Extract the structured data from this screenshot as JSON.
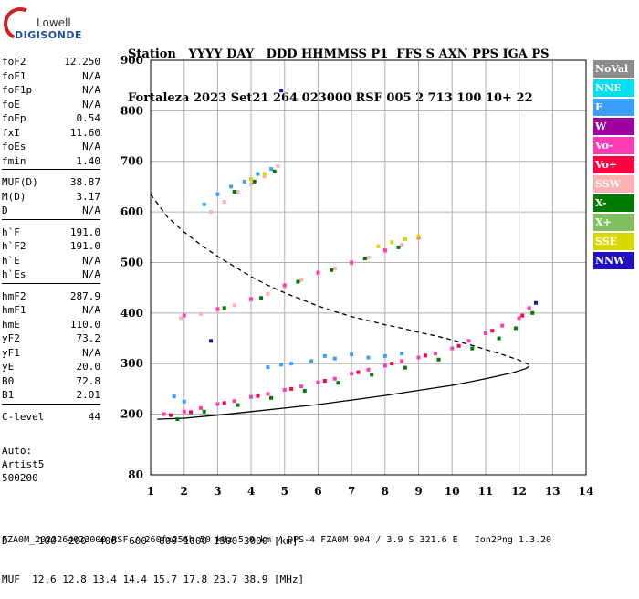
{
  "logo": {
    "line1": "Lowell",
    "line2": "DIGISONDE"
  },
  "header": {
    "line1": "Station   YYYY DAY   DDD HHMMSS P1  FFS S AXN PPS IGA PS",
    "line2": "Fortaleza 2023 Set21 264 023000 RSF 005 2 713 100 10+ 22"
  },
  "params": [
    [
      {
        "k": "foF2",
        "v": "12.250"
      },
      {
        "k": "foF1",
        "v": "N/A"
      },
      {
        "k": "foF1p",
        "v": "N/A"
      },
      {
        "k": "foE",
        "v": "N/A"
      },
      {
        "k": "foEp",
        "v": "0.54"
      },
      {
        "k": "fxI",
        "v": "11.60"
      },
      {
        "k": "foEs",
        "v": "N/A"
      },
      {
        "k": "fmin",
        "v": "1.40"
      }
    ],
    [
      {
        "k": "MUF(D)",
        "v": "38.87"
      },
      {
        "k": "M(D)",
        "v": "3.17"
      },
      {
        "k": "D",
        "v": "N/A"
      }
    ],
    [
      {
        "k": "h`F",
        "v": "191.0"
      },
      {
        "k": "h`F2",
        "v": "191.0"
      },
      {
        "k": "h`E",
        "v": "N/A"
      },
      {
        "k": "h`Es",
        "v": "N/A"
      }
    ],
    [
      {
        "k": "hmF2",
        "v": "287.9"
      },
      {
        "k": "hmF1",
        "v": "N/A"
      },
      {
        "k": "hmE",
        "v": "110.0"
      },
      {
        "k": "yF2",
        "v": "73.2"
      },
      {
        "k": "yF1",
        "v": "N/A"
      },
      {
        "k": "yE",
        "v": "20.0"
      },
      {
        "k": "B0",
        "v": "72.8"
      },
      {
        "k": "B1",
        "v": "2.01"
      }
    ],
    [
      {
        "k": "C-level",
        "v": "44"
      }
    ]
  ],
  "auto": {
    "line1": "Auto:",
    "line2": "Artist5",
    "line3": "500200"
  },
  "legend": [
    {
      "label": "NoVal",
      "color": "#8c8c8c"
    },
    {
      "label": "NNE",
      "color": "#00e0f0"
    },
    {
      "label": "E",
      "color": "#3aa0ff"
    },
    {
      "label": "W",
      "color": "#a000a0"
    },
    {
      "label": "Vo-",
      "color": "#ff3cb4"
    },
    {
      "label": "Vo+",
      "color": "#ff0040"
    },
    {
      "label": "SSW",
      "color": "#ffb0b0"
    },
    {
      "label": "X-",
      "color": "#007a00"
    },
    {
      "label": "X+",
      "color": "#80c060"
    },
    {
      "label": "SSE",
      "color": "#d8d800"
    },
    {
      "label": "NNW",
      "color": "#2010c0"
    }
  ],
  "bottom": {
    "line1": "D     100  200  400  600  800 1000 1500 3000 [km]",
    "line2": "MUF  12.6 12.8 13.4 14.4 15.7 17.8 23.7 38.9 [MHz]"
  },
  "footer": "FZA0M_2023264023000.RSF / 260fx256h 50 kHz 5.0 km / DPS-4 FZA0M 904 / 3.9 S 321.6 E   Ion2Png 1.3.20",
  "chart_data": {
    "type": "scatter",
    "xlim": [
      1,
      14
    ],
    "ylim": [
      80,
      900
    ],
    "xticks": [
      1,
      2,
      3,
      4,
      5,
      6,
      7,
      8,
      9,
      10,
      11,
      12,
      13,
      14
    ],
    "yticks": [
      80,
      200,
      300,
      400,
      500,
      600,
      700,
      800,
      900
    ],
    "grid": true,
    "legend_position": "right",
    "series": [
      {
        "color": "#ff3cb4",
        "points": [
          [
            1.4,
            200
          ],
          [
            2,
            205
          ],
          [
            2.5,
            212
          ],
          [
            3,
            220
          ],
          [
            3.5,
            226
          ],
          [
            4,
            234
          ],
          [
            4.5,
            240
          ],
          [
            5,
            248
          ],
          [
            5.5,
            255
          ],
          [
            6,
            263
          ],
          [
            6.5,
            270
          ],
          [
            7,
            280
          ],
          [
            7.5,
            288
          ],
          [
            8,
            296
          ],
          [
            8.5,
            305
          ],
          [
            9,
            312
          ],
          [
            9.5,
            320
          ],
          [
            10,
            330
          ],
          [
            10.5,
            345
          ],
          [
            11,
            360
          ],
          [
            11.5,
            375
          ],
          [
            12,
            390
          ],
          [
            12.3,
            410
          ]
        ]
      },
      {
        "color": "#ff0040",
        "points": [
          [
            1.6,
            198
          ],
          [
            2.2,
            204
          ],
          [
            3.2,
            222
          ],
          [
            4.2,
            236
          ],
          [
            5.2,
            250
          ],
          [
            6.2,
            266
          ],
          [
            7.2,
            283
          ],
          [
            8.2,
            300
          ],
          [
            9.2,
            316
          ],
          [
            10.2,
            335
          ],
          [
            11.2,
            365
          ],
          [
            12.1,
            395
          ]
        ]
      },
      {
        "color": "#007a00",
        "points": [
          [
            1.8,
            190
          ],
          [
            2.6,
            205
          ],
          [
            3.6,
            218
          ],
          [
            4.6,
            232
          ],
          [
            5.6,
            246
          ],
          [
            6.6,
            262
          ],
          [
            7.6,
            278
          ],
          [
            8.6,
            292
          ],
          [
            9.6,
            308
          ],
          [
            10.6,
            330
          ],
          [
            11.4,
            350
          ],
          [
            11.9,
            370
          ],
          [
            12.4,
            400
          ]
        ]
      },
      {
        "color": "#3aa0ff",
        "points": [
          [
            1.7,
            235
          ],
          [
            2,
            225
          ],
          [
            5.2,
            300
          ],
          [
            5.8,
            305
          ],
          [
            6.2,
            315
          ],
          [
            6.5,
            310
          ],
          [
            7,
            318
          ],
          [
            7.5,
            312
          ],
          [
            8,
            315
          ],
          [
            8.5,
            320
          ],
          [
            4.5,
            293
          ],
          [
            4.9,
            298
          ]
        ]
      },
      {
        "color": "#ffb0b0",
        "points": [
          [
            1.9,
            390
          ],
          [
            2.5,
            398
          ],
          [
            3,
            405
          ],
          [
            3.5,
            415
          ],
          [
            4,
            425
          ],
          [
            4.5,
            438
          ],
          [
            5,
            452
          ],
          [
            5.5,
            465
          ],
          [
            6,
            478
          ],
          [
            6.5,
            488
          ],
          [
            7,
            498
          ],
          [
            7.5,
            510
          ],
          [
            8,
            522
          ],
          [
            8.5,
            535
          ],
          [
            9,
            548
          ]
        ]
      },
      {
        "color": "#ff3cb4",
        "points": [
          [
            2,
            395
          ],
          [
            3,
            408
          ],
          [
            4,
            428
          ],
          [
            5,
            455
          ],
          [
            6,
            480
          ],
          [
            7,
            500
          ],
          [
            8,
            524
          ],
          [
            9,
            550
          ]
        ]
      },
      {
        "color": "#007a00",
        "points": [
          [
            3.2,
            410
          ],
          [
            4.3,
            430
          ],
          [
            5.4,
            462
          ],
          [
            6.4,
            485
          ],
          [
            7.4,
            508
          ],
          [
            8.4,
            530
          ]
        ]
      },
      {
        "color": "#d8d800",
        "points": [
          [
            7.8,
            532
          ],
          [
            8.2,
            540
          ],
          [
            8.6,
            546
          ],
          [
            9,
            552
          ]
        ]
      },
      {
        "color": "#ffb0b0",
        "points": [
          [
            2.8,
            600
          ],
          [
            3.2,
            620
          ],
          [
            3.6,
            640
          ],
          [
            4,
            655
          ],
          [
            4.4,
            670
          ],
          [
            4.8,
            690
          ]
        ]
      },
      {
        "color": "#3aa0ff",
        "points": [
          [
            2.6,
            615
          ],
          [
            3,
            635
          ],
          [
            3.4,
            650
          ],
          [
            3.8,
            660
          ],
          [
            4.2,
            675
          ],
          [
            4.6,
            685
          ]
        ]
      },
      {
        "color": "#007a00",
        "points": [
          [
            3.5,
            640
          ],
          [
            4.1,
            660
          ],
          [
            4.7,
            680
          ]
        ]
      },
      {
        "color": "#d8d800",
        "points": [
          [
            4.0,
            665
          ],
          [
            4.4,
            675
          ]
        ]
      },
      {
        "color": "#2010c0",
        "points": [
          [
            2.8,
            345
          ],
          [
            4.9,
            840
          ],
          [
            12.5,
            420
          ]
        ]
      }
    ],
    "lines": [
      {
        "style": "solid",
        "color": "#000",
        "points": [
          [
            1.2,
            190
          ],
          [
            2,
            192
          ],
          [
            3,
            198
          ],
          [
            4,
            205
          ],
          [
            5,
            212
          ],
          [
            6,
            219
          ],
          [
            7,
            228
          ],
          [
            8,
            237
          ],
          [
            9,
            247
          ],
          [
            10,
            257
          ],
          [
            11,
            270
          ],
          [
            11.8,
            282
          ],
          [
            12.2,
            290
          ],
          [
            12.3,
            295
          ]
        ]
      },
      {
        "style": "dashed",
        "color": "#000",
        "points": [
          [
            1,
            635
          ],
          [
            1.5,
            590
          ],
          [
            2,
            560
          ],
          [
            2.5,
            535
          ],
          [
            3,
            512
          ],
          [
            3.5,
            492
          ],
          [
            4,
            472
          ],
          [
            4.5,
            455
          ],
          [
            5,
            440
          ],
          [
            5.5,
            427
          ],
          [
            6,
            414
          ],
          [
            6.5,
            403
          ],
          [
            7,
            393
          ],
          [
            7.5,
            385
          ],
          [
            8,
            377
          ],
          [
            8.5,
            370
          ],
          [
            9,
            362
          ],
          [
            9.5,
            355
          ],
          [
            10,
            347
          ],
          [
            10.5,
            338
          ],
          [
            11,
            328
          ],
          [
            11.5,
            318
          ],
          [
            12,
            307
          ],
          [
            12.3,
            298
          ]
        ]
      }
    ]
  }
}
